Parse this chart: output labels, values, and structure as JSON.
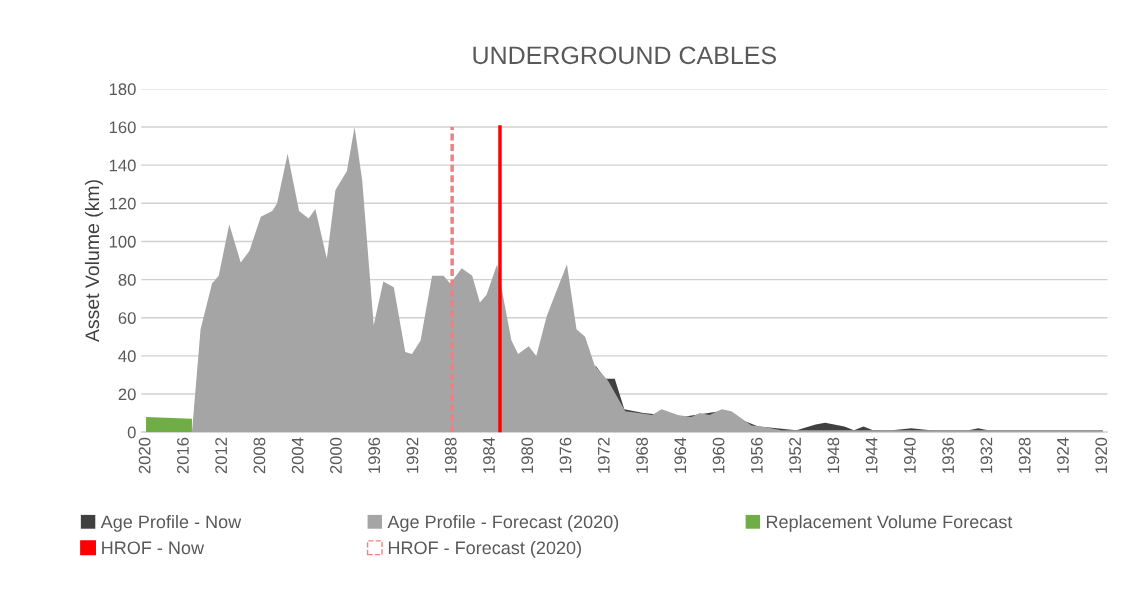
{
  "chart_data": {
    "type": "area",
    "title": "UNDERGROUND CABLES",
    "ylabel": "Asset Volume (km)",
    "xlim": [
      2020.5,
      1919.5
    ],
    "xticks": [
      2020,
      2016,
      2012,
      2008,
      2004,
      2000,
      1996,
      1992,
      1988,
      1984,
      1980,
      1976,
      1972,
      1968,
      1964,
      1960,
      1956,
      1952,
      1948,
      1944,
      1940,
      1936,
      1932,
      1928,
      1924,
      1920
    ],
    "ylim": [
      0,
      180
    ],
    "yticks": [
      0,
      20,
      40,
      60,
      80,
      100,
      120,
      140,
      160,
      180
    ],
    "grid": "y",
    "legend": "bottom",
    "series": [
      {
        "name": "Age Profile - Now",
        "color": "#404040",
        "x": [
          1973,
          1972,
          1971,
          1970,
          1968,
          1964,
          1960,
          1956,
          1952,
          1950,
          1949,
          1947,
          1946,
          1945,
          1944,
          1942,
          1940,
          1938,
          1934,
          1933,
          1932,
          1928,
          1920
        ],
        "values": [
          35,
          28,
          28,
          12,
          10,
          8,
          11,
          3,
          1,
          4,
          5,
          3,
          1,
          3,
          1,
          1,
          2,
          1,
          1,
          2,
          1,
          1,
          1
        ]
      },
      {
        "name": "Age Profile - Forecast (2020)",
        "color": "#a5a5a5",
        "x": [
          2015.2,
          2014.3,
          2013.1,
          2012.4,
          2011.3,
          2010.1,
          2009.2,
          2008,
          2006.8,
          2006.3,
          2005.2,
          2004,
          2003,
          2002.3,
          2001.1,
          2000.2,
          1999,
          1998.2,
          1997.4,
          1996.2,
          1995.2,
          1994.1,
          1992.9,
          1992.2,
          1991.3,
          1990.1,
          1988.9,
          1988.2,
          1987,
          1985.9,
          1985.1,
          1984.4,
          1983.3,
          1981.8,
          1981.1,
          1980,
          1979.2,
          1978.1,
          1976,
          1975,
          1974.1,
          1973.1,
          1971.7,
          1969.9,
          1968.5,
          1967.1,
          1966.1,
          1964.4,
          1963,
          1962.1,
          1961.1,
          1959.8,
          1958.8,
          1956.7,
          1955.7,
          1953.6,
          1952,
          1948,
          1944,
          1940,
          1932,
          1920
        ],
        "values": [
          0,
          54,
          78,
          82,
          109,
          89,
          95,
          113,
          116,
          120,
          146,
          116,
          112,
          117,
          91,
          127,
          137,
          160,
          132,
          56,
          79,
          76,
          42,
          41,
          48,
          82,
          82,
          78,
          86,
          82,
          68,
          72,
          88,
          48,
          41,
          45,
          40,
          61,
          88,
          54,
          50,
          35,
          27,
          11,
          10,
          9,
          12,
          9,
          8,
          10,
          9,
          12,
          11,
          3.5,
          3,
          1,
          1,
          1,
          1,
          1,
          1,
          1
        ]
      },
      {
        "name": "Replacement Volume Forecast",
        "color": "#70ad47",
        "x": [
          2020,
          2015.2
        ],
        "values": [
          8,
          7
        ]
      },
      {
        "name": "HROF - Now",
        "color": "#ff0000",
        "type": "line",
        "line_style": "solid",
        "x": [
          1983,
          1983
        ],
        "values": [
          0,
          160
        ]
      },
      {
        "name": "HROF - Forecast (2020)",
        "color": "#f08080",
        "type": "line",
        "line_style": "dashed",
        "x": [
          1988,
          1988
        ],
        "values": [
          0,
          160
        ]
      }
    ]
  }
}
